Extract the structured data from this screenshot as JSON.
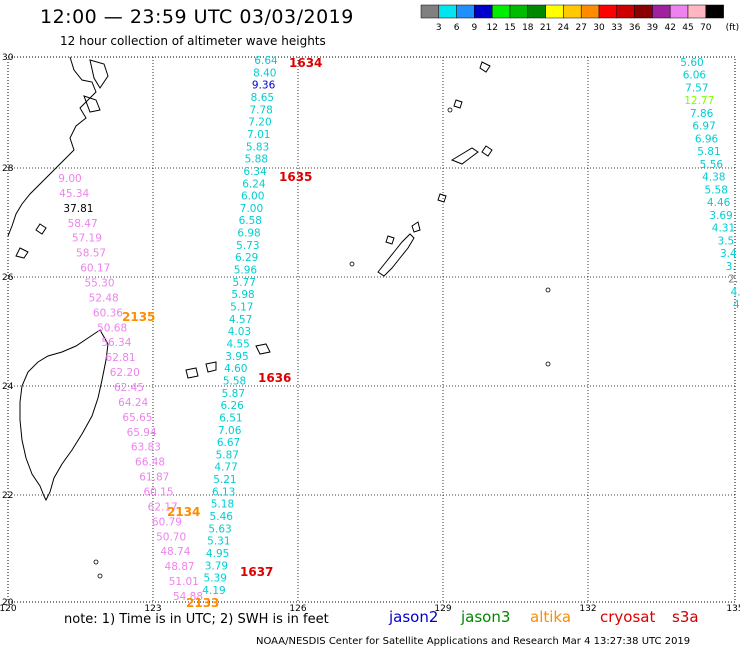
{
  "header": {
    "title": "12:00 — 23:59 UTC 03/03/2019",
    "subtitle": "12 hour collection of altimeter wave heights"
  },
  "colorbar": {
    "labels": [
      "3",
      "6",
      "9",
      "12",
      "15",
      "18",
      "21",
      "24",
      "27",
      "30",
      "33",
      "36",
      "39",
      "42",
      "45",
      "70"
    ],
    "unit": "(ft)",
    "colors": [
      "#808080",
      "#00e5ee",
      "#1e90ff",
      "#0000cd",
      "#00ee00",
      "#00bb00",
      "#008800",
      "#ffff00",
      "#ffc800",
      "#ff8c00",
      "#ff0000",
      "#cc0000",
      "#8b0000",
      "#a020a0",
      "#ee82ee",
      "#ffb6c1",
      "#000000"
    ]
  },
  "axes": {
    "lon_labels": [
      "120",
      "123",
      "126",
      "129",
      "132",
      "135"
    ],
    "lat_labels": [
      "30",
      "28",
      "26",
      "24",
      "22",
      "20"
    ]
  },
  "tracks": {
    "left_pink": {
      "color": "#ee82ee",
      "values": [
        "9.00",
        "45.34",
        "37.81",
        "58.47",
        "57.19",
        "58.57",
        "60.17",
        "55.30",
        "52.48",
        "60.36",
        "50.68",
        "56.34",
        "62.81",
        "62.20",
        "62.45",
        "64.24",
        "65.65",
        "65.94",
        "63.83",
        "66.48",
        "61.87",
        "60.15",
        "62.17",
        "60.79",
        "50.70",
        "48.74",
        "48.87",
        "51.01",
        "54.88"
      ],
      "colors": [
        "#ee82ee",
        "#ee82ee",
        "#000000",
        "#ee82ee",
        "#ee82ee",
        "#ee82ee",
        "#ee82ee",
        "#ee82ee",
        "#ee82ee",
        "#ee82ee",
        "#ee82ee",
        "#ee82ee",
        "#ee82ee",
        "#ee82ee",
        "#ee82ee",
        "#ee82ee",
        "#ee82ee",
        "#ee82ee",
        "#ee82ee",
        "#ee82ee",
        "#ee82ee",
        "#ee82ee",
        "#ee82ee",
        "#ee82ee",
        "#ee82ee",
        "#ee82ee",
        "#ee82ee",
        "#ee82ee",
        "#ee82ee"
      ]
    },
    "center_cyan": {
      "values": [
        "6.64",
        "8.40",
        "9.36",
        "8.65",
        "7.78",
        "7.20",
        "7.01",
        "5.83",
        "5.88",
        "6.34",
        "6.24",
        "6.00",
        "7.00",
        "6.58",
        "6.98",
        "5.73",
        "6.29",
        "5.96",
        "5.77",
        "5.98",
        "5.17",
        "4.57",
        "4.03",
        "4.55",
        "3.95",
        "4.60",
        "5.58",
        "5.87",
        "6.26",
        "6.51",
        "7.06",
        "6.67",
        "5.87",
        "4.77",
        "5.21",
        "6.13",
        "5.18",
        "5.46",
        "5.63",
        "5.31",
        "4.95",
        "3.79",
        "5.39",
        "4.19"
      ],
      "colors": [
        "#00ced1",
        "#00ced1",
        "#0000cd",
        "#00ced1",
        "#00ced1",
        "#00ced1",
        "#00ced1",
        "#00ced1",
        "#00ced1",
        "#00ced1",
        "#00ced1",
        "#00ced1",
        "#00ced1",
        "#00ced1",
        "#00ced1",
        "#00ced1",
        "#00ced1",
        "#00ced1",
        "#00ced1",
        "#00ced1",
        "#00ced1",
        "#00ced1",
        "#00ced1",
        "#00ced1",
        "#00ced1",
        "#00ced1",
        "#00ced1",
        "#00ced1",
        "#00ced1",
        "#00ced1",
        "#00ced1",
        "#00ced1",
        "#00ced1",
        "#00ced1",
        "#00ced1",
        "#00ced1",
        "#00ced1",
        "#00ced1",
        "#00ced1",
        "#00ced1",
        "#00ced1",
        "#00ced1",
        "#00ced1",
        "#00ced1"
      ]
    },
    "right_track": {
      "values": [
        "5.60",
        "6.06",
        "7.57",
        "12.77",
        "7.86",
        "6.97",
        "6.96",
        "5.81",
        "5.56",
        "4.38",
        "5.58",
        "4.46",
        "3.69",
        "4.31",
        "3.5",
        "3.4",
        "3.",
        "2.",
        "4.",
        "4."
      ],
      "colors": [
        "#00ced1",
        "#00ced1",
        "#00ced1",
        "#7fff00",
        "#00ced1",
        "#00ced1",
        "#00ced1",
        "#00ced1",
        "#00ced1",
        "#00ced1",
        "#00ced1",
        "#00ced1",
        "#00ced1",
        "#00ced1",
        "#00ced1",
        "#00ced1",
        "#00ced1",
        "#808080",
        "#00ced1",
        "#00ced1"
      ]
    }
  },
  "time_tags": [
    {
      "text": "1634",
      "color": "#dd0000"
    },
    {
      "text": "1635",
      "color": "#dd0000"
    },
    {
      "text": "1636",
      "color": "#dd0000"
    },
    {
      "text": "1637",
      "color": "#dd0000"
    },
    {
      "text": "2135",
      "color": "#ff8c00"
    },
    {
      "text": "2134",
      "color": "#ff8c00"
    },
    {
      "text": "2133",
      "color": "#ff8c00"
    }
  ],
  "footer": {
    "note": "note:  1) Time is in UTC;  2) SWH is in feet",
    "satellites": [
      {
        "name": "jason2",
        "color": "#0000cd"
      },
      {
        "name": "jason3",
        "color": "#008800"
      },
      {
        "name": "altika",
        "color": "#ff8c00"
      },
      {
        "name": "cryosat",
        "color": "#dd0000"
      },
      {
        "name": "s3a",
        "color": "#cc0000"
      }
    ],
    "credit": "NOAA/NESDIS Center for Satellite Applications and Research    Mar  4 13:27:38 UTC 2019"
  }
}
